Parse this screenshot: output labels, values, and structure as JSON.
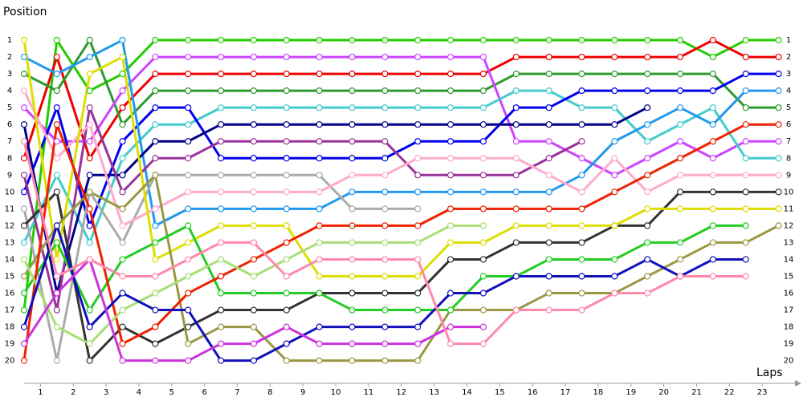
{
  "chart_data": {
    "type": "line",
    "y_label": "Position",
    "x_label": "Laps",
    "x": [
      0,
      1,
      2,
      3,
      4,
      5,
      6,
      7,
      8,
      9,
      10,
      11,
      12,
      13,
      14,
      15,
      16,
      17,
      18,
      19,
      20,
      21,
      22,
      23
    ],
    "xlim": [
      0,
      23.5
    ],
    "xticks": [
      {
        "value": 0.5,
        "label": "1"
      },
      {
        "value": 1.5,
        "label": "2"
      },
      {
        "value": 2.5,
        "label": "3"
      },
      {
        "value": 3.5,
        "label": "4"
      },
      {
        "value": 4.5,
        "label": "5"
      },
      {
        "value": 5.5,
        "label": "6"
      },
      {
        "value": 6.5,
        "label": "7"
      },
      {
        "value": 7.5,
        "label": "8"
      },
      {
        "value": 8.5,
        "label": "9"
      },
      {
        "value": 9.5,
        "label": "10"
      },
      {
        "value": 10.5,
        "label": "11"
      },
      {
        "value": 11.5,
        "label": "12"
      },
      {
        "value": 12.5,
        "label": "13"
      },
      {
        "value": 13.5,
        "label": "14"
      },
      {
        "value": 14.5,
        "label": "15"
      },
      {
        "value": 15.5,
        "label": "16"
      },
      {
        "value": 16.5,
        "label": "17"
      },
      {
        "value": 17.5,
        "label": "18"
      },
      {
        "value": 18.5,
        "label": "19"
      },
      {
        "value": 19.5,
        "label": "20"
      },
      {
        "value": 20.5,
        "label": "21"
      },
      {
        "value": 21.5,
        "label": "22"
      },
      {
        "value": 22.5,
        "label": "23"
      }
    ],
    "ylim": [
      21.3,
      0
    ],
    "yticks": [
      1,
      2,
      3,
      4,
      5,
      6,
      7,
      8,
      9,
      10,
      11,
      12,
      13,
      14,
      15,
      16,
      17,
      18,
      19,
      20
    ],
    "series": [
      {
        "color": "#22cc00",
        "values": [
          17,
          1,
          4,
          3,
          1,
          1,
          1,
          1,
          1,
          1,
          1,
          1,
          1,
          1,
          1,
          1,
          1,
          1,
          1,
          1,
          1,
          2,
          1,
          1
        ]
      },
      {
        "color": "#ee0000",
        "values": [
          8,
          2,
          8,
          5,
          3,
          3,
          3,
          3,
          3,
          3,
          3,
          3,
          3,
          3,
          3,
          2,
          2,
          2,
          2,
          2,
          2,
          1,
          2,
          2
        ]
      },
      {
        "color": "#2e9a2e",
        "values": [
          3,
          4,
          1,
          6,
          4,
          4,
          4,
          4,
          4,
          4,
          4,
          4,
          4,
          4,
          4,
          3,
          3,
          3,
          3,
          3,
          3,
          3,
          5,
          5
        ]
      },
      {
        "color": "#cc44ff",
        "values": [
          5,
          7,
          7,
          4,
          2,
          2,
          2,
          2,
          2,
          2,
          2,
          2,
          2,
          2,
          2,
          7,
          7,
          8,
          9,
          8,
          7,
          8,
          7,
          7
        ]
      },
      {
        "color": "#44cccc",
        "values": [
          13,
          9,
          13,
          8,
          6,
          6,
          5,
          5,
          5,
          5,
          5,
          5,
          5,
          5,
          5,
          4,
          4,
          5,
          5,
          7,
          6,
          5,
          8,
          8
        ]
      },
      {
        "color": "#0000ee",
        "values": [
          10,
          5,
          12,
          7,
          5,
          5,
          8,
          8,
          8,
          8,
          8,
          8,
          7,
          7,
          7,
          5,
          5,
          4,
          4,
          4,
          4,
          4,
          3,
          3
        ]
      },
      {
        "color": "#2299ee",
        "values": [
          2,
          3,
          2,
          1,
          12,
          11,
          11,
          11,
          11,
          11,
          10,
          10,
          10,
          10,
          10,
          10,
          10,
          9,
          7,
          6,
          5,
          6,
          4,
          4
        ]
      },
      {
        "color": "#000088",
        "values": [
          6,
          16,
          9,
          9,
          7,
          7,
          6,
          6,
          6,
          6,
          6,
          6,
          6,
          6,
          6,
          6,
          6,
          6,
          6,
          5,
          null,
          null,
          null,
          null
        ]
      },
      {
        "color": "#993399",
        "values": [
          9,
          17,
          5,
          10,
          8,
          8,
          7,
          7,
          7,
          7,
          7,
          7,
          9,
          9,
          9,
          9,
          8,
          7,
          null,
          null,
          null,
          null,
          null,
          null
        ]
      },
      {
        "color": "#aaaaaa",
        "values": [
          11,
          20,
          10,
          13,
          9,
          9,
          9,
          9,
          9,
          9,
          11,
          11,
          11,
          null,
          null,
          null,
          null,
          null,
          null,
          null,
          null,
          null,
          null,
          null
        ]
      },
      {
        "color": "#ffaacc",
        "values": [
          4,
          8,
          6,
          12,
          11,
          10,
          10,
          10,
          10,
          10,
          9,
          9,
          8,
          8,
          8,
          8,
          9,
          10,
          8,
          10,
          9,
          9,
          9,
          9
        ]
      },
      {
        "color": "#333333",
        "values": [
          12,
          10,
          20,
          18,
          19,
          18,
          17,
          17,
          17,
          16,
          16,
          16,
          16,
          14,
          14,
          13,
          13,
          13,
          12,
          12,
          10,
          10,
          10,
          10
        ]
      },
      {
        "color": "#dddd00",
        "values": [
          1,
          14,
          3,
          2,
          14,
          13,
          12,
          12,
          12,
          15,
          15,
          15,
          15,
          13,
          13,
          12,
          12,
          12,
          12,
          11,
          11,
          11,
          11,
          11
        ]
      },
      {
        "color": "#999944",
        "values": [
          15,
          12,
          10,
          11,
          9,
          19,
          18,
          18,
          20,
          20,
          20,
          20,
          20,
          17,
          17,
          17,
          16,
          16,
          16,
          15,
          14,
          13,
          13,
          12
        ]
      },
      {
        "color": "#22cc22",
        "values": [
          16,
          13,
          17,
          14,
          13,
          12,
          16,
          16,
          16,
          16,
          17,
          17,
          17,
          17,
          15,
          15,
          14,
          14,
          14,
          13,
          13,
          12,
          12,
          null
        ]
      },
      {
        "color": "#ee2200",
        "values": [
          20,
          6,
          11,
          19,
          18,
          16,
          15,
          14,
          13,
          12,
          12,
          12,
          12,
          11,
          11,
          11,
          11,
          11,
          10,
          9,
          8,
          7,
          6,
          6
        ]
      },
      {
        "color": "#aadd77",
        "values": [
          14,
          18,
          19,
          17,
          16,
          15,
          14,
          15,
          14,
          13,
          13,
          13,
          13,
          12,
          12,
          null,
          null,
          null,
          null,
          null,
          null,
          null,
          null,
          null
        ]
      },
      {
        "color": "#1111bb",
        "values": [
          18,
          12,
          18,
          16,
          17,
          17,
          20,
          20,
          19,
          18,
          18,
          18,
          18,
          16,
          16,
          15,
          15,
          15,
          15,
          14,
          15,
          14,
          14,
          null
        ]
      },
      {
        "color": "#cc33dd",
        "values": [
          19,
          16,
          14,
          20,
          20,
          20,
          19,
          19,
          18,
          19,
          19,
          19,
          19,
          18,
          18,
          null,
          null,
          null,
          null,
          null,
          null,
          null,
          null,
          null
        ]
      },
      {
        "color": "#ff88aa",
        "values": [
          7,
          15,
          14,
          15,
          15,
          14,
          13,
          13,
          15,
          14,
          14,
          14,
          14,
          19,
          19,
          17,
          17,
          17,
          16,
          16,
          15,
          15,
          15,
          null
        ]
      }
    ]
  }
}
